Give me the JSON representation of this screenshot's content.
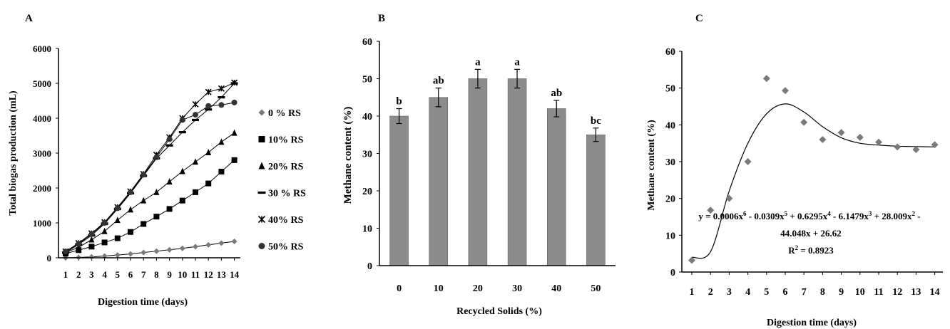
{
  "chart_data": [
    {
      "panel_label": "A",
      "type": "scatter",
      "xlabel": "Digestion time (days)",
      "ylabel": "Total biogas production (mL)",
      "xlim": [
        1,
        14
      ],
      "ylim": [
        0,
        6000
      ],
      "x_ticks": [
        "1",
        "2",
        "3",
        "4",
        "5",
        "6",
        "7",
        "8",
        "9",
        "10",
        "11",
        "12",
        "13",
        "14"
      ],
      "y_ticks": [
        "0",
        "1000",
        "2000",
        "3000",
        "4000",
        "5000",
        "6000"
      ],
      "grid": false,
      "legend_position": "right",
      "x": [
        1,
        2,
        3,
        4,
        5,
        6,
        7,
        8,
        9,
        10,
        11,
        12,
        13,
        14
      ],
      "series": [
        {
          "name": "0 % RS",
          "marker": "diamond",
          "values": [
            0,
            10,
            25,
            50,
            80,
            110,
            150,
            190,
            230,
            270,
            320,
            370,
            420,
            470
          ]
        },
        {
          "name": "10% RS",
          "marker": "square",
          "values": [
            120,
            220,
            320,
            440,
            560,
            740,
            970,
            1180,
            1400,
            1640,
            1880,
            2130,
            2470,
            2800
          ]
        },
        {
          "name": "20% RS",
          "marker": "triangle",
          "values": [
            150,
            300,
            520,
            760,
            1080,
            1380,
            1640,
            1880,
            2180,
            2480,
            2750,
            3020,
            3320,
            3580
          ]
        },
        {
          "name": "30 % RS",
          "marker": "dash",
          "values": [
            150,
            380,
            640,
            980,
            1400,
            1850,
            2350,
            2850,
            3220,
            3600,
            3950,
            4250,
            4600,
            5000
          ]
        },
        {
          "name": "40% RS",
          "marker": "x",
          "values": [
            180,
            420,
            700,
            1020,
            1450,
            1900,
            2400,
            2950,
            3450,
            4000,
            4400,
            4750,
            4850,
            5020
          ]
        },
        {
          "name": "50% RS",
          "marker": "circle",
          "values": [
            180,
            400,
            680,
            1000,
            1420,
            1880,
            2380,
            2880,
            3400,
            3950,
            4100,
            4350,
            4380,
            4450
          ]
        }
      ]
    },
    {
      "panel_label": "B",
      "type": "bar",
      "xlabel": "Recycled Solids (%)",
      "ylabel": "Methane content (%)",
      "categories": [
        "0",
        "10",
        "20",
        "30",
        "40",
        "50"
      ],
      "values": [
        40,
        45,
        50,
        50,
        42,
        35
      ],
      "errors": [
        2,
        2.5,
        2.5,
        2.5,
        2.2,
        1.8
      ],
      "bar_labels": [
        "b",
        "ab",
        "a",
        "a",
        "ab",
        "bc"
      ],
      "ylim": [
        0,
        60
      ],
      "y_ticks": [
        "0",
        "10",
        "20",
        "30",
        "40",
        "50",
        "60"
      ],
      "bar_color": "#8c8c8c",
      "grid": false
    },
    {
      "panel_label": "C",
      "type": "scatter",
      "xlabel": "Digestion time (days)",
      "ylabel": "Methane content (%)",
      "xlim": [
        1,
        14
      ],
      "ylim": [
        0,
        60
      ],
      "x_ticks": [
        "1",
        "2",
        "3",
        "4",
        "5",
        "6",
        "7",
        "8",
        "9",
        "10",
        "11",
        "12",
        "13",
        "14"
      ],
      "y_ticks": [
        "0",
        "10",
        "20",
        "30",
        "40",
        "50",
        "60"
      ],
      "grid": false,
      "x": [
        1,
        2,
        3,
        4,
        5,
        6,
        7,
        8,
        9,
        10,
        11,
        12,
        13,
        14
      ],
      "values": [
        3.2,
        16.8,
        20,
        30,
        52.6,
        49.3,
        40.7,
        36,
        37.9,
        36.6,
        35.3,
        34,
        33.3,
        34.6
      ],
      "fit_curve": [
        4,
        5.5,
        22,
        35,
        43,
        45.7,
        43.5,
        39.5,
        36.5,
        35,
        34.5,
        34.2,
        34.1,
        34
      ],
      "equation_line1_parts": [
        "y = 0.0006x",
        "6",
        " - 0.0309x",
        "5",
        " + 0.6295x",
        "4",
        " - 6.1479x",
        "3",
        " + 28.009x",
        "2",
        " -"
      ],
      "equation_line2": "44.048x + 26.62",
      "r2_label": "R",
      "r2_sup": "2",
      "r2_value": " = 0.8923"
    }
  ]
}
